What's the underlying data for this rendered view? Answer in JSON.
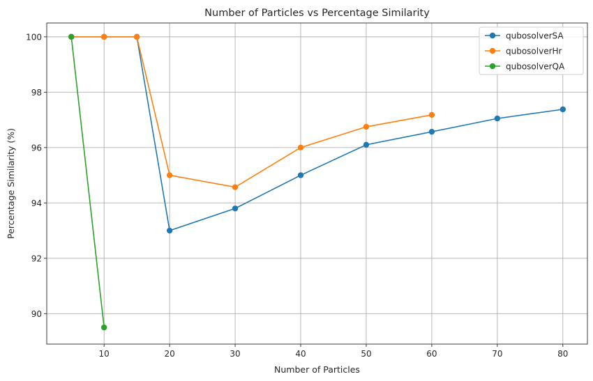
{
  "chart_data": {
    "type": "line",
    "title": "Number of Particles vs Percentage Similarity",
    "xlabel": "Number of Particles",
    "ylabel": "Percentage Similarity (%)",
    "xlim": [
      1.25,
      83.75
    ],
    "ylim": [
      88.9,
      100.5
    ],
    "xticks": [
      10,
      20,
      30,
      40,
      50,
      60,
      70,
      80
    ],
    "yticks": [
      90,
      92,
      94,
      96,
      98,
      100
    ],
    "grid": true,
    "legend_position": "top-right",
    "series": [
      {
        "name": "qubosolverSA",
        "color": "#1f77b4",
        "x": [
          5,
          10,
          15,
          20,
          30,
          40,
          50,
          60,
          70,
          80
        ],
        "y": [
          100,
          100,
          100,
          93.0,
          93.8,
          95.0,
          96.1,
          96.57,
          97.05,
          97.38
        ]
      },
      {
        "name": "qubosolverHr",
        "color": "#ff7f0e",
        "x": [
          5,
          10,
          15,
          20,
          30,
          40,
          50,
          60
        ],
        "y": [
          100,
          100,
          100,
          95.0,
          94.57,
          96.0,
          96.75,
          97.18
        ]
      },
      {
        "name": "qubosolverQA",
        "color": "#2ca02c",
        "x": [
          5,
          10
        ],
        "y": [
          100,
          89.5
        ]
      }
    ]
  }
}
